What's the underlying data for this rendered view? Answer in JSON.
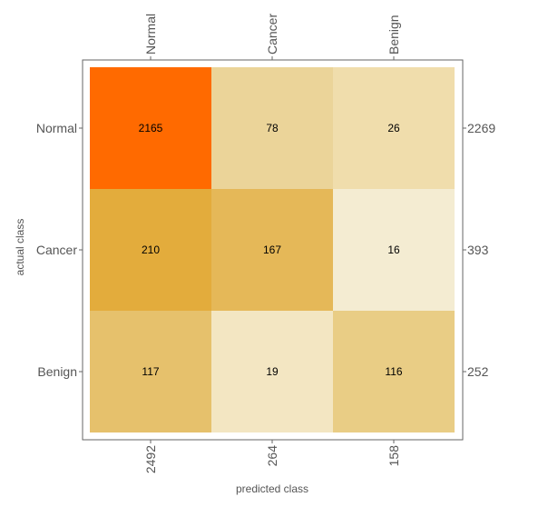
{
  "chart_data": {
    "type": "heatmap",
    "title": "",
    "xlabel": "predicted class",
    "ylabel": "actual class",
    "x_categories": [
      "Normal",
      "Cancer",
      "Benign"
    ],
    "y_categories": [
      "Normal",
      "Cancer",
      "Benign"
    ],
    "values": [
      [
        2165,
        78,
        26
      ],
      [
        210,
        167,
        16
      ],
      [
        117,
        19,
        116
      ]
    ],
    "row_totals": [
      "2269",
      "393",
      "252"
    ],
    "col_totals": [
      "2492",
      "264",
      "158"
    ],
    "cell_colors": [
      [
        "#ff6a00",
        "#ebd499",
        "#f0ddac"
      ],
      [
        "#e3ac3c",
        "#e5b858",
        "#f4ecd2"
      ],
      [
        "#e6c16c",
        "#f3e6c2",
        "#e9cd85"
      ]
    ],
    "grid": false,
    "legend": "none"
  }
}
